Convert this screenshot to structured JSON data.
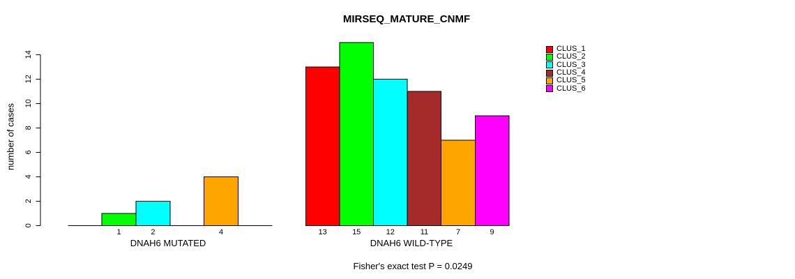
{
  "chart_data": {
    "type": "bar",
    "title": "MIRSEQ_MATURE_CNMF",
    "ylabel": "number of cases",
    "xlabel": "",
    "subtitle": "Fisher's exact test P = 0.0249",
    "ylim": [
      0,
      14
    ],
    "yticks": [
      0,
      2,
      4,
      6,
      8,
      10,
      12,
      14
    ],
    "grid": false,
    "legend_position": "right",
    "background": "#ffffff",
    "axis_color": "#000000",
    "clusters": [
      "CLUS_1",
      "CLUS_2",
      "CLUS_3",
      "CLUS_4",
      "CLUS_5",
      "CLUS_6"
    ],
    "colors": [
      "#ff0000",
      "#00ff00",
      "#00ffff",
      "#a52a2a",
      "#ffa500",
      "#ff00ff"
    ],
    "groups": [
      {
        "label": "DNAH6 MUTATED",
        "values": [
          0,
          1,
          2,
          0,
          4,
          0
        ]
      },
      {
        "label": "DNAH6 WILD-TYPE",
        "values": [
          13,
          15,
          12,
          11,
          7,
          9
        ]
      }
    ]
  }
}
